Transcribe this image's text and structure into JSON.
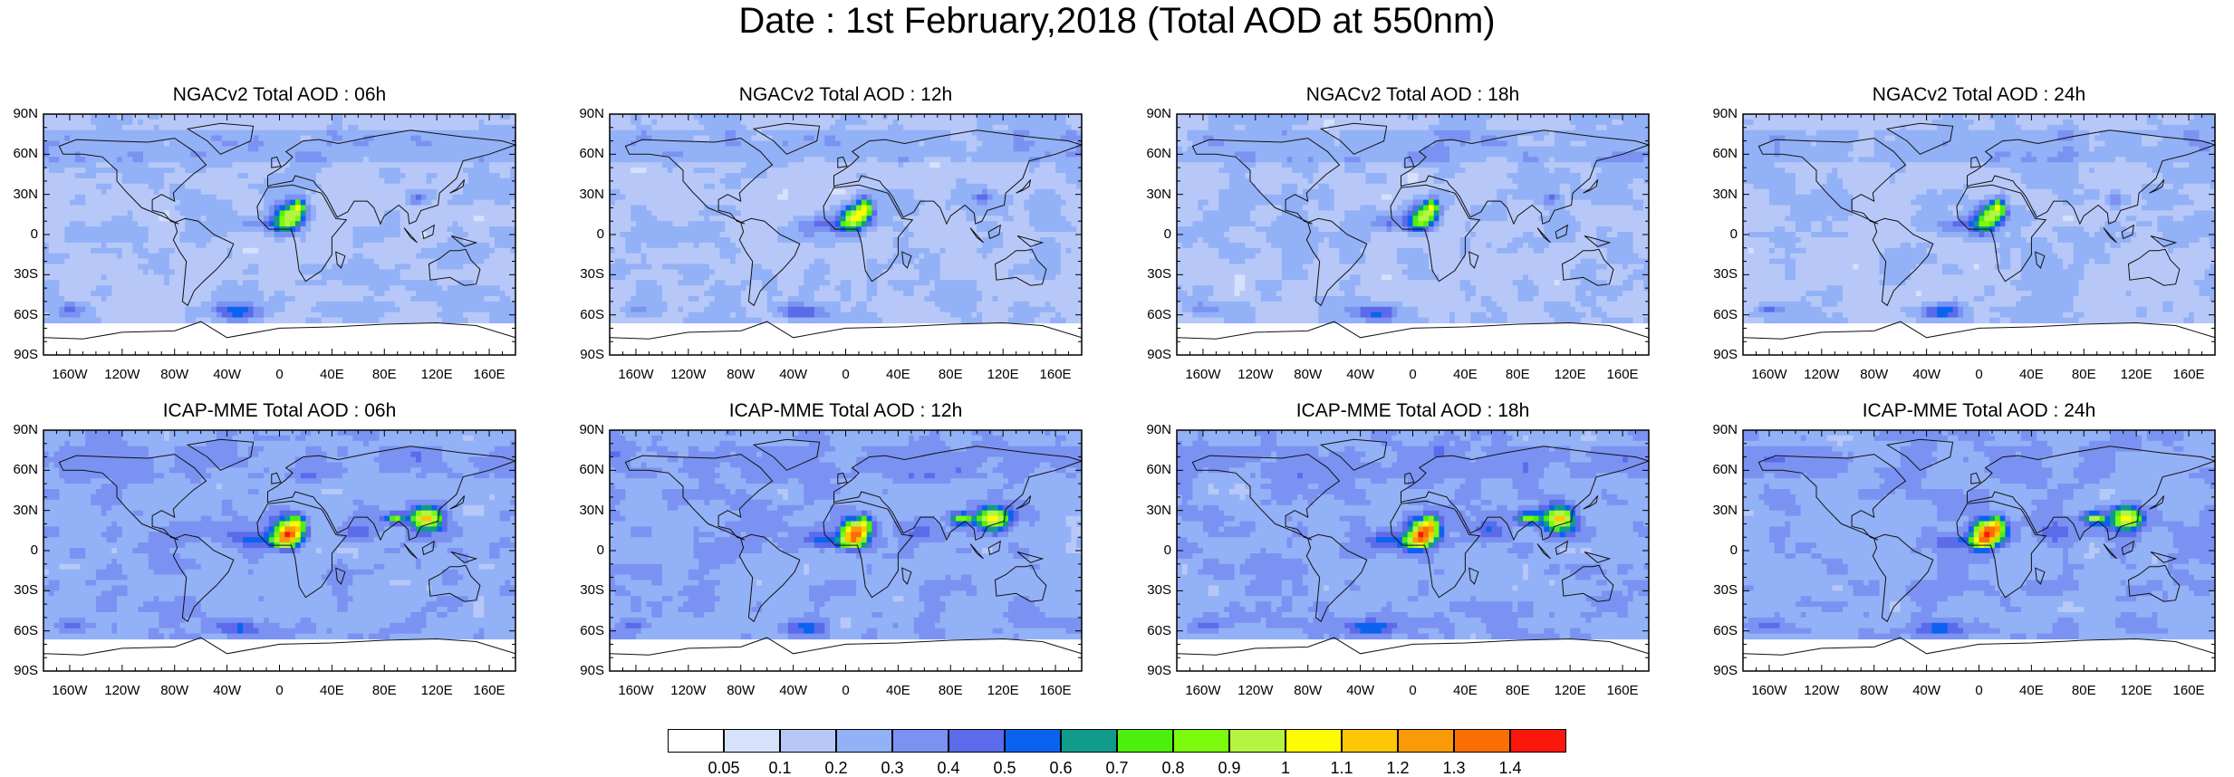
{
  "title": "Date : 1st February,2018 (Total AOD at 550nm)",
  "panels": [
    {
      "title": "NGACv2 Total AOD : 06h",
      "model": "ngac"
    },
    {
      "title": "NGACv2 Total AOD : 12h",
      "model": "ngac"
    },
    {
      "title": "NGACv2 Total AOD : 18h",
      "model": "ngac"
    },
    {
      "title": "NGACv2 Total AOD : 24h",
      "model": "ngac"
    },
    {
      "title": "ICAP-MME Total AOD : 06h",
      "model": "icap"
    },
    {
      "title": "ICAP-MME Total AOD : 12h",
      "model": "icap"
    },
    {
      "title": "ICAP-MME Total AOD : 18h",
      "model": "icap"
    },
    {
      "title": "ICAP-MME Total AOD : 24h",
      "model": "icap"
    }
  ],
  "lat_ticks": [
    "90N",
    "60N",
    "30N",
    "0",
    "30S",
    "60S",
    "90S"
  ],
  "lon_ticks": [
    "160W",
    "120W",
    "80W",
    "40W",
    "0",
    "40E",
    "80E",
    "120E",
    "160E"
  ],
  "colorbar": {
    "colors": [
      "#ffffff",
      "#d6e1fb",
      "#b7c8f8",
      "#93b1f6",
      "#7b92f2",
      "#5b6bea",
      "#0a63f0",
      "#109b8d",
      "#4cf00c",
      "#7bfa0c",
      "#b5f442",
      "#fefc02",
      "#fdc607",
      "#fb9a07",
      "#fa7004",
      "#f9180b"
    ],
    "labels": [
      "0.05",
      "0.1",
      "0.2",
      "0.3",
      "0.4",
      "0.5",
      "0.6",
      "0.7",
      "0.8",
      "0.9",
      "1",
      "1.1",
      "1.2",
      "1.3",
      "1.4"
    ]
  }
}
